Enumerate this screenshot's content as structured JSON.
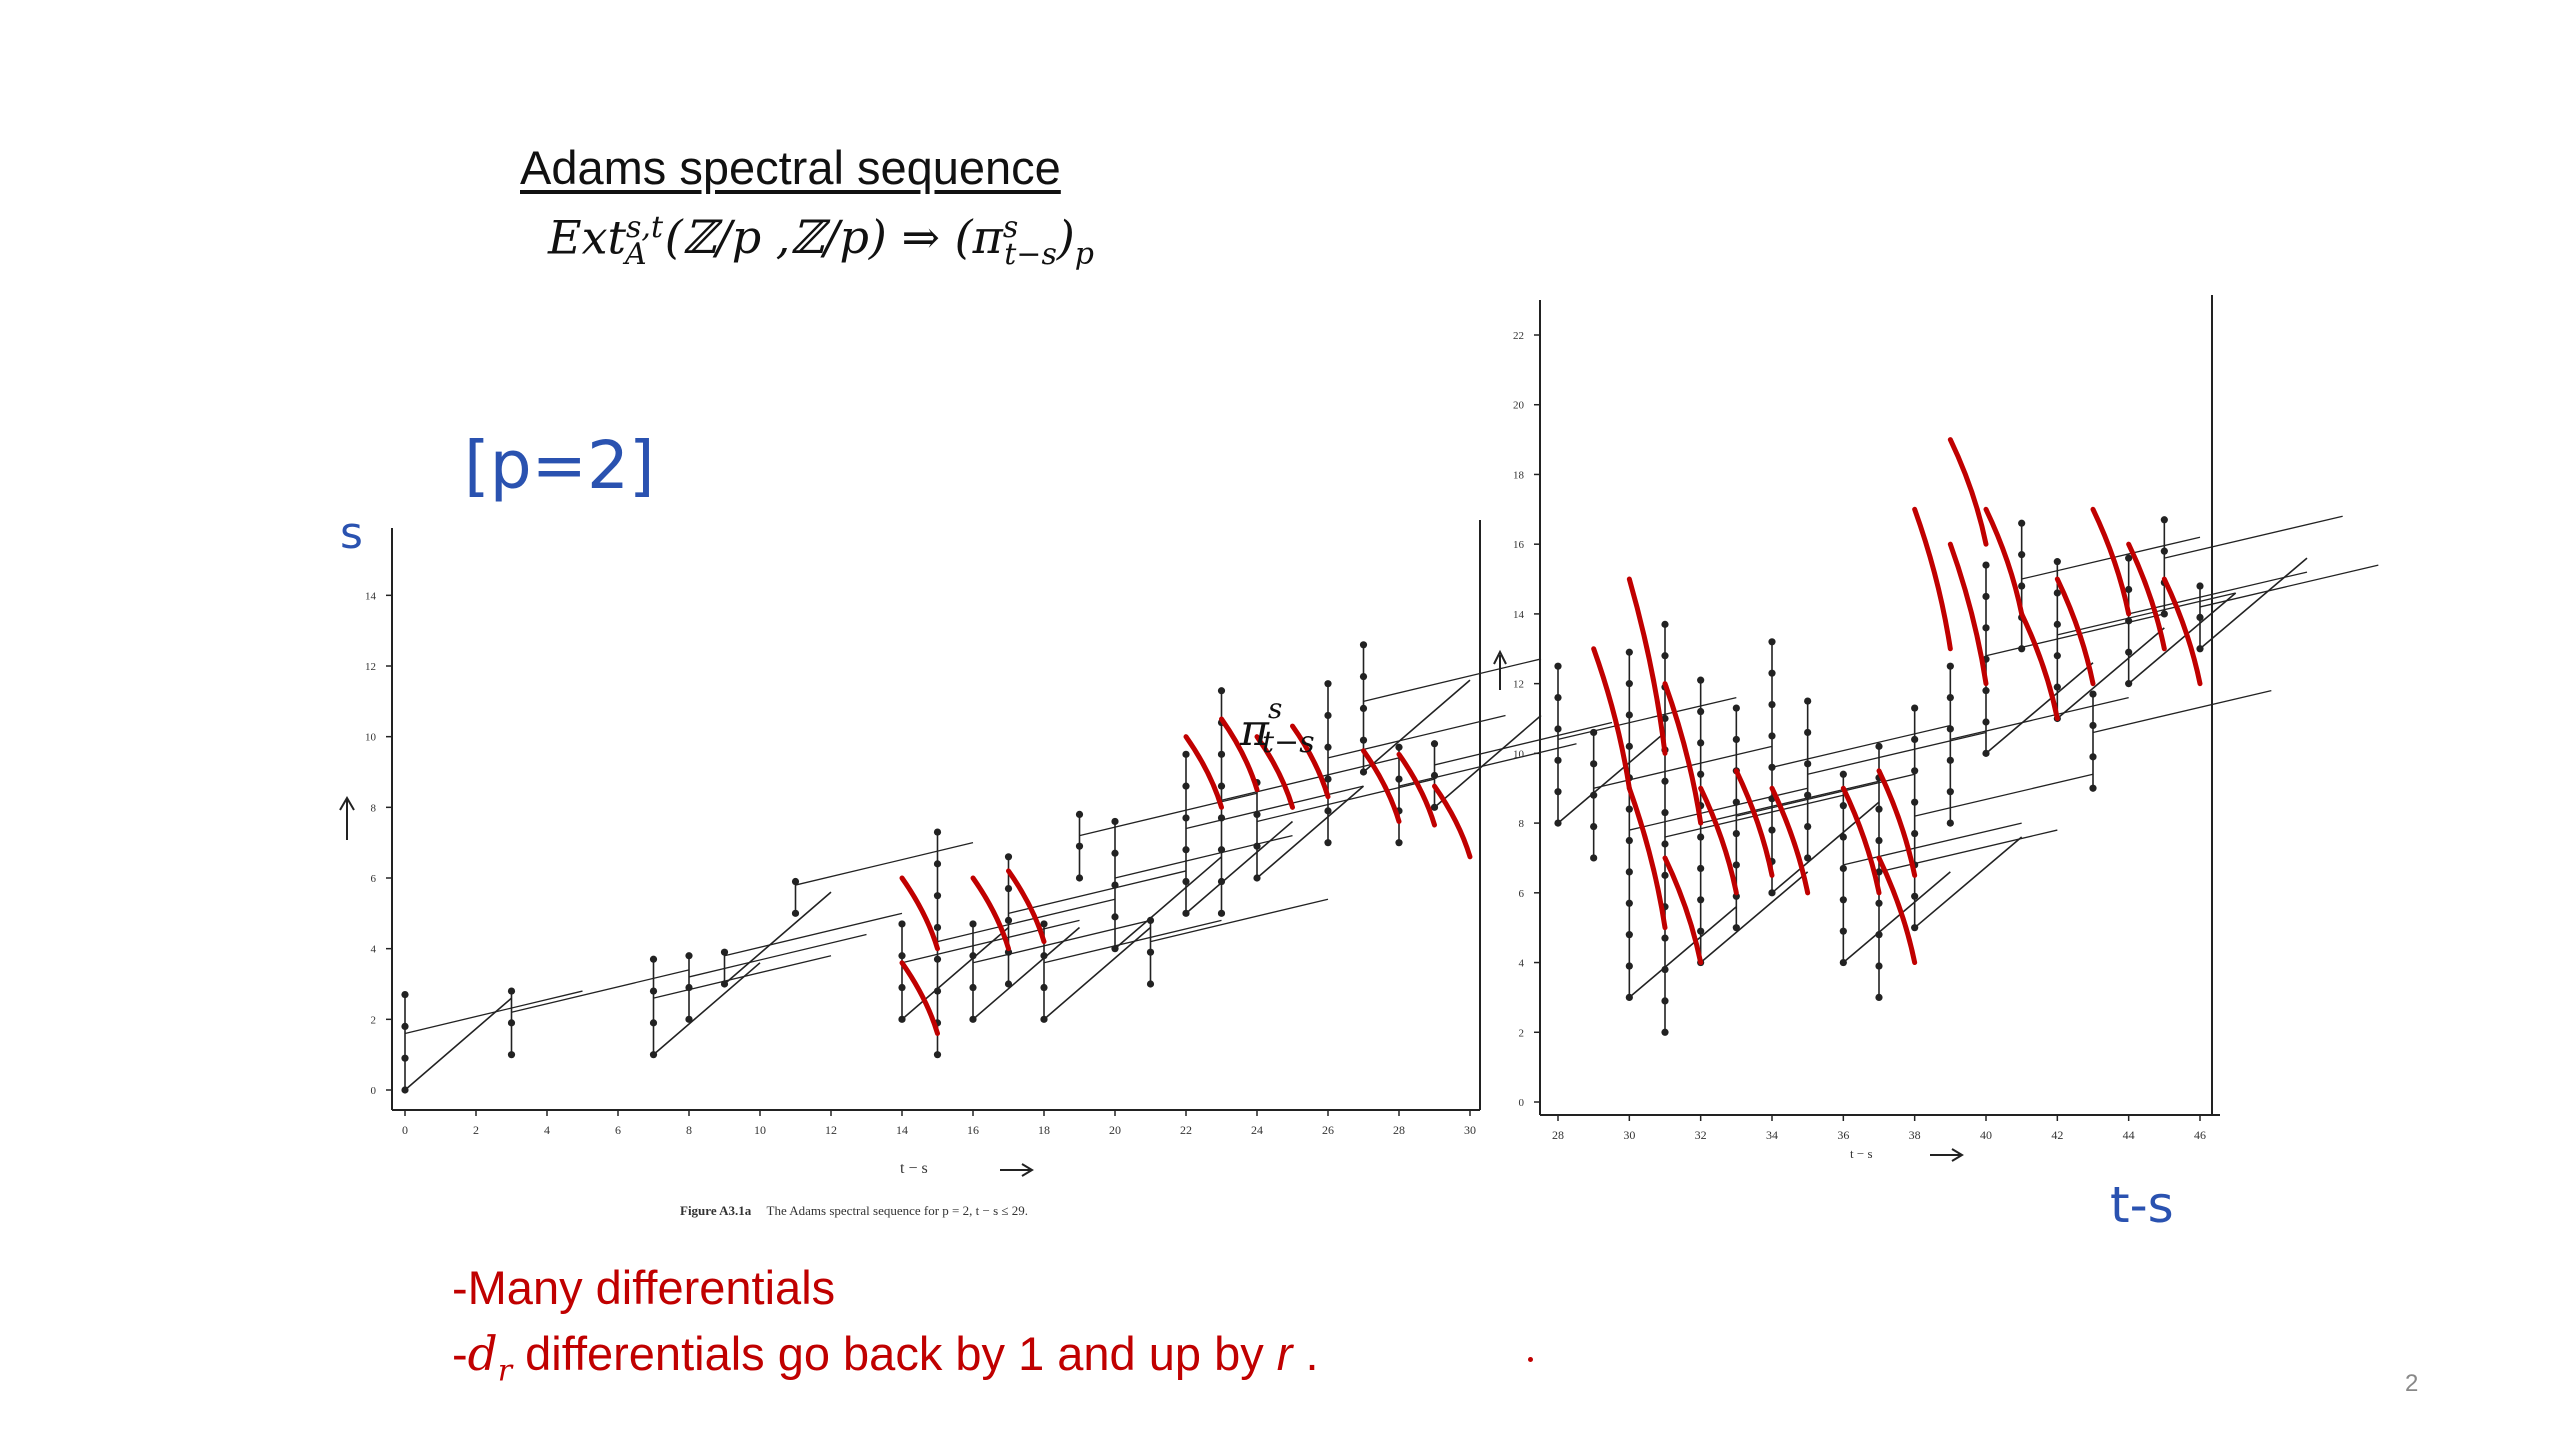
{
  "title": "Adams spectral sequence",
  "formula": {
    "ext": "Ext",
    "sup": "s,t",
    "sub": "A",
    "args": "(ℤ/p ,ℤ/p) ⇒ (π",
    "pi_sup": "s",
    "pi_sub": "t−s",
    "tail": ")",
    "tail_sub": "p"
  },
  "annotations": {
    "p_value": "[p=2]",
    "s_axis": "s",
    "ts_axis": "t-s",
    "overlay_pi": "π",
    "overlay_pi_sup": "s",
    "overlay_pi_sub": "t−s"
  },
  "caption": {
    "figure": "Figure A3.1a",
    "text": "The Adams spectral sequence for p = 2, t − s ≤ 29."
  },
  "chart_axes": {
    "left_x_label": "t − s",
    "left_y_label": "s",
    "right_x_label": "t − s"
  },
  "bullets": {
    "line1": "-Many differentials",
    "line2_prefix": "-",
    "line2_math": "d",
    "line2_math_sub": "r",
    "line2_text": " differentials go back by 1 and up by ",
    "line2_r": "r",
    "line2_dot": " ."
  },
  "page_number": "2",
  "colors": {
    "accent": "#c00000",
    "ink": "#2a52b0"
  },
  "chart_data": [
    {
      "type": "scatter",
      "xlim": [
        0,
        30
      ],
      "ylim": [
        0,
        15
      ],
      "x_ticks": [
        0,
        2,
        4,
        6,
        8,
        10,
        12,
        14,
        16,
        18,
        20,
        22,
        24,
        26,
        28,
        30
      ],
      "y_ticks": [
        0,
        2,
        4,
        6,
        8,
        10,
        12,
        14
      ]
    },
    {
      "type": "scatter",
      "xlim": [
        28,
        46
      ],
      "ylim": [
        0,
        22
      ],
      "x_ticks": [
        28,
        30,
        32,
        34,
        36,
        38,
        40,
        42,
        44,
        46
      ],
      "y_ticks": [
        0,
        2,
        4,
        6,
        8,
        10,
        12,
        14,
        16,
        18,
        20,
        22
      ]
    }
  ]
}
